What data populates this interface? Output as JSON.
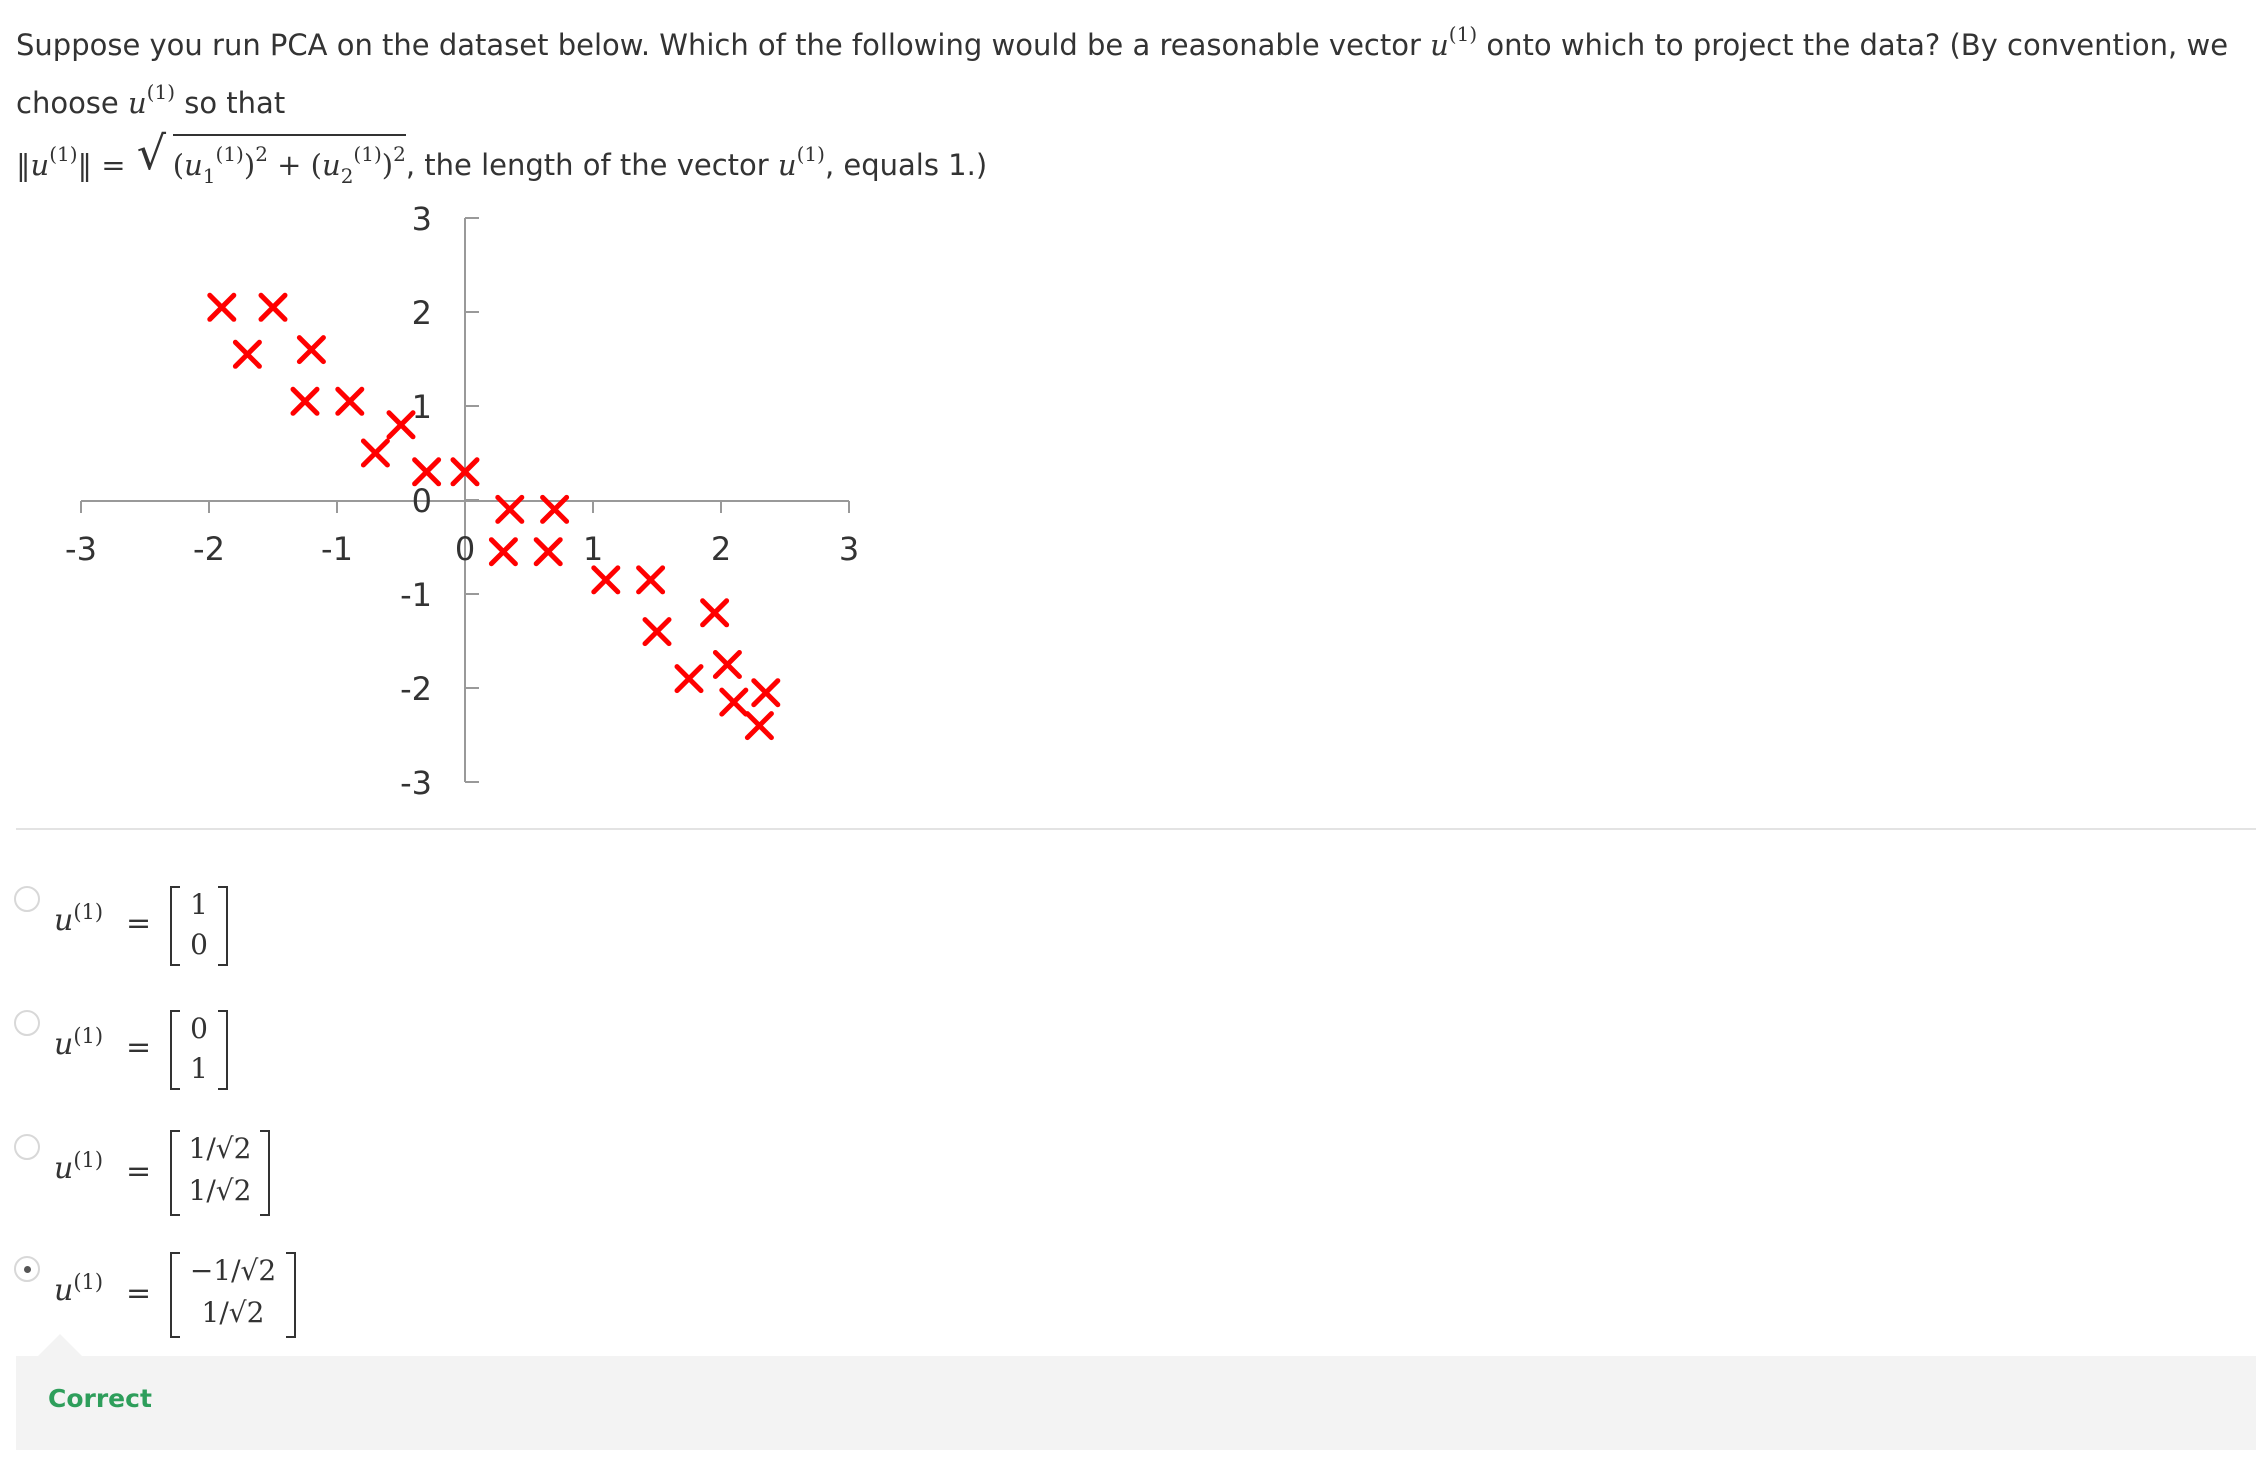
{
  "question": {
    "text_1": "Suppose you run PCA on the dataset below. Which of the following would be a reasonable vector ",
    "text_2": " onto which to project the data? (By convention, we choose ",
    "text_3": " so that",
    "text_4": ", the length of the vector ",
    "text_5": ", equals 1.)",
    "symbol": "u",
    "superscript": "(1)",
    "sub1": "1",
    "sub2": "2",
    "power": "2",
    "norm": "‖u‖ ="
  },
  "chart_data": {
    "type": "scatter",
    "marker": "x",
    "marker_color": "#ff0000",
    "axis_color": "#999999",
    "x_ticks": [
      "-3",
      "-2",
      "-1",
      "0",
      "1",
      "2",
      "3"
    ],
    "y_ticks": [
      "3",
      "2",
      "1",
      "0",
      "-1",
      "-2",
      "-3"
    ],
    "xlim": [
      -3,
      3
    ],
    "ylim": [
      -3,
      3
    ],
    "points": [
      [
        -1.9,
        2.05
      ],
      [
        -1.5,
        2.05
      ],
      [
        -1.7,
        1.55
      ],
      [
        -1.2,
        1.6
      ],
      [
        -1.25,
        1.05
      ],
      [
        -0.9,
        1.05
      ],
      [
        -0.5,
        0.8
      ],
      [
        -0.7,
        0.5
      ],
      [
        -0.3,
        0.3
      ],
      [
        0.0,
        0.3
      ],
      [
        0.35,
        -0.1
      ],
      [
        0.7,
        -0.1
      ],
      [
        0.3,
        -0.55
      ],
      [
        0.65,
        -0.55
      ],
      [
        1.1,
        -0.85
      ],
      [
        1.45,
        -0.85
      ],
      [
        1.5,
        -1.4
      ],
      [
        1.95,
        -1.2
      ],
      [
        2.05,
        -1.75
      ],
      [
        1.75,
        -1.9
      ],
      [
        2.1,
        -2.15
      ],
      [
        2.35,
        -2.05
      ],
      [
        2.3,
        -2.4
      ]
    ]
  },
  "options": [
    {
      "label": "u",
      "sup": "(1)",
      "eq": "=",
      "top": "1",
      "bottom": "0",
      "selected": false
    },
    {
      "label": "u",
      "sup": "(1)",
      "eq": "=",
      "top": "0",
      "bottom": "1",
      "selected": false
    },
    {
      "label": "u",
      "sup": "(1)",
      "eq": "=",
      "top": "1/√2",
      "bottom": "1/√2",
      "selected": false
    },
    {
      "label": "u",
      "sup": "(1)",
      "eq": "=",
      "top": "−1/√2",
      "bottom": "1/√2",
      "selected": true
    }
  ],
  "feedback": {
    "text": "Correct",
    "color": "#2e9e5b"
  }
}
